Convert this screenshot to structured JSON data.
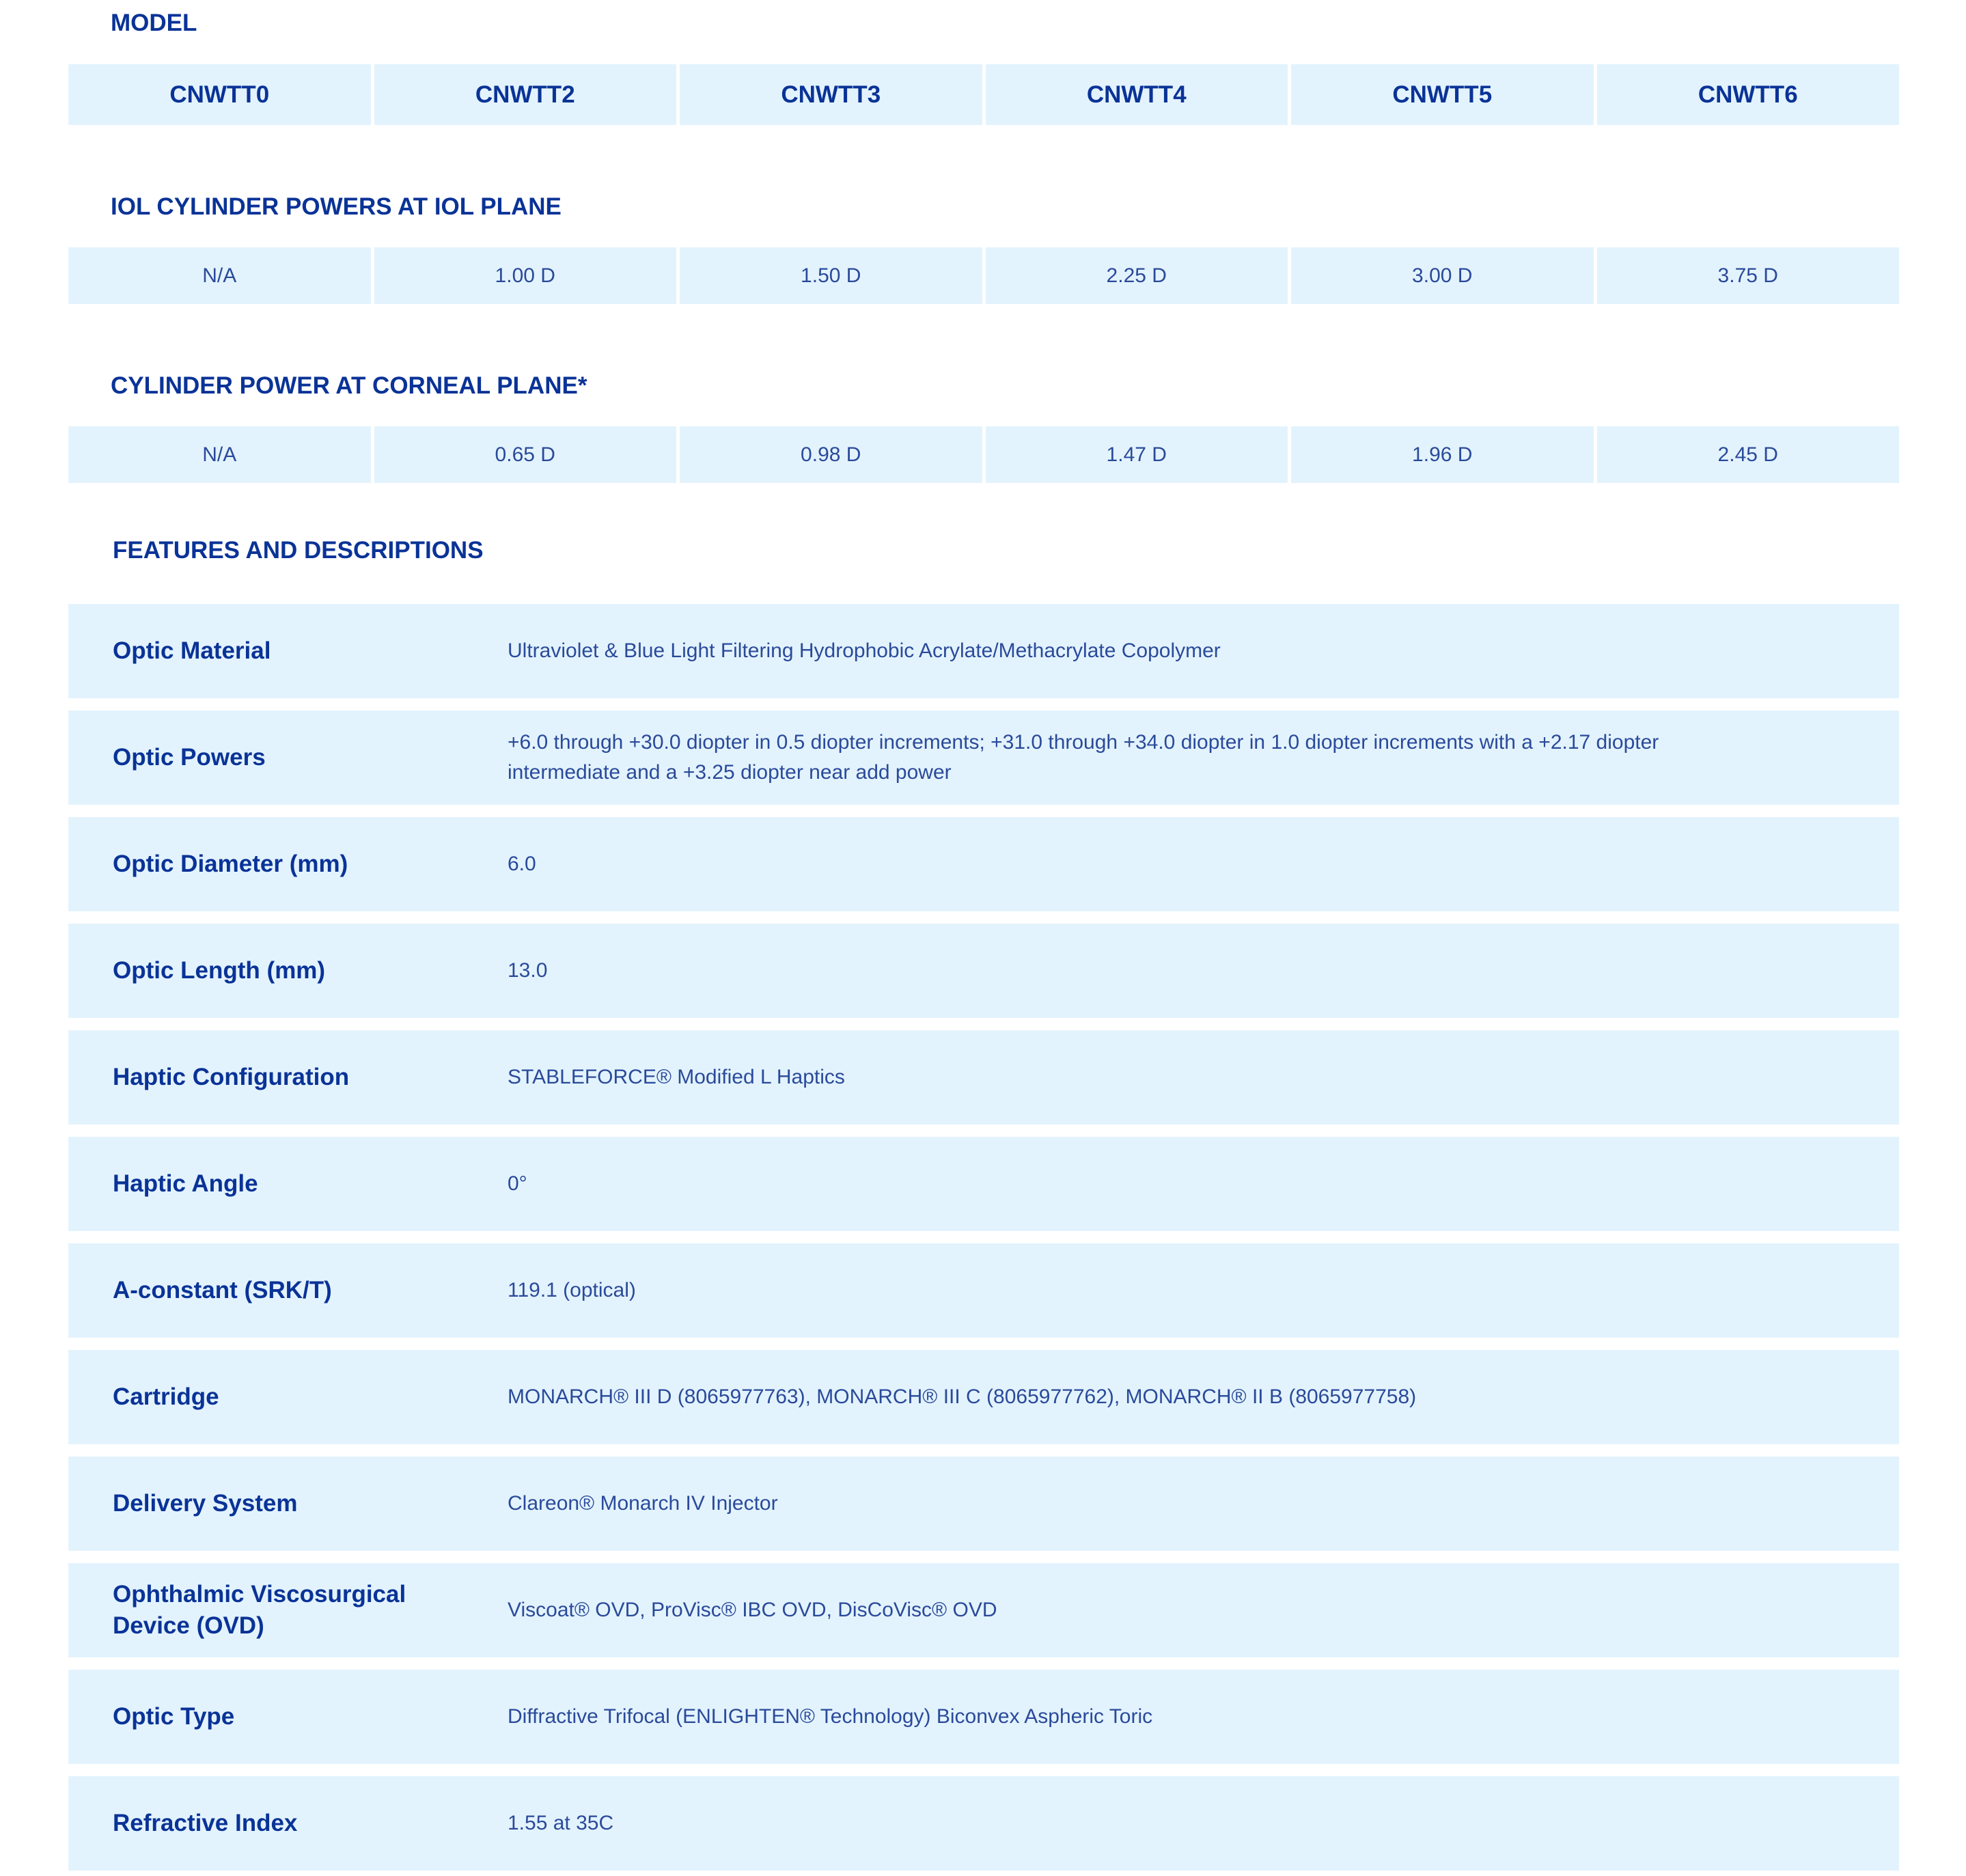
{
  "model": {
    "title": "MODEL",
    "columns": [
      "CNWTT0",
      "CNWTT2",
      "CNWTT3",
      "CNWTT4",
      "CNWTT5",
      "CNWTT6"
    ]
  },
  "iol_cylinder": {
    "title": "IOL CYLINDER POWERS AT IOL PLANE",
    "values": [
      "N/A",
      "1.00 D",
      "1.50 D",
      "2.25 D",
      "3.00 D",
      "3.75 D"
    ]
  },
  "corneal_cylinder": {
    "title": "CYLINDER POWER AT CORNEAL PLANE*",
    "values": [
      "N/A",
      "0.65 D",
      "0.98 D",
      "1.47 D",
      "1.96 D",
      "2.45 D"
    ]
  },
  "features": {
    "title": "FEATURES AND DESCRIPTIONS",
    "rows": [
      {
        "label": "Optic Material",
        "value": "Ultraviolet & Blue Light Filtering Hydrophobic Acrylate/Methacrylate Copolymer"
      },
      {
        "label": "Optic Powers",
        "value": "+6.0 through +30.0 diopter in 0.5 diopter increments; +31.0 through +34.0 diopter in 1.0 diopter increments with a +2.17 diopter intermediate and a +3.25 diopter near add power"
      },
      {
        "label": "Optic Diameter (mm)",
        "value": "6.0"
      },
      {
        "label": "Optic Length (mm)",
        "value": "13.0"
      },
      {
        "label": "Haptic Configuration",
        "value": "STABLEFORCE® Modified L Haptics"
      },
      {
        "label": "Haptic Angle",
        "value": "0°"
      },
      {
        "label": "A-constant (SRK/T)",
        "value": "119.1 (optical)"
      },
      {
        "label": "Cartridge",
        "value": "MONARCH® III D (8065977763), MONARCH® III C (8065977762), MONARCH® II B (8065977758)"
      },
      {
        "label": "Delivery System",
        "value": "Clareon® Monarch IV Injector"
      },
      {
        "label": "Ophthalmic Viscosurgical Device (OVD)",
        "value": "Viscoat® OVD, ProVisc® IBC OVD, DisCoVisc® OVD"
      },
      {
        "label": "Optic Type",
        "value": "Diffractive Trifocal (ENLIGHTEN® Technology) Biconvex Aspheric Toric"
      },
      {
        "label": "Refractive Index",
        "value": "1.55 at 35C"
      }
    ]
  },
  "colors": {
    "text": "#0a3397",
    "cell_bg": "#e3f3fd"
  }
}
